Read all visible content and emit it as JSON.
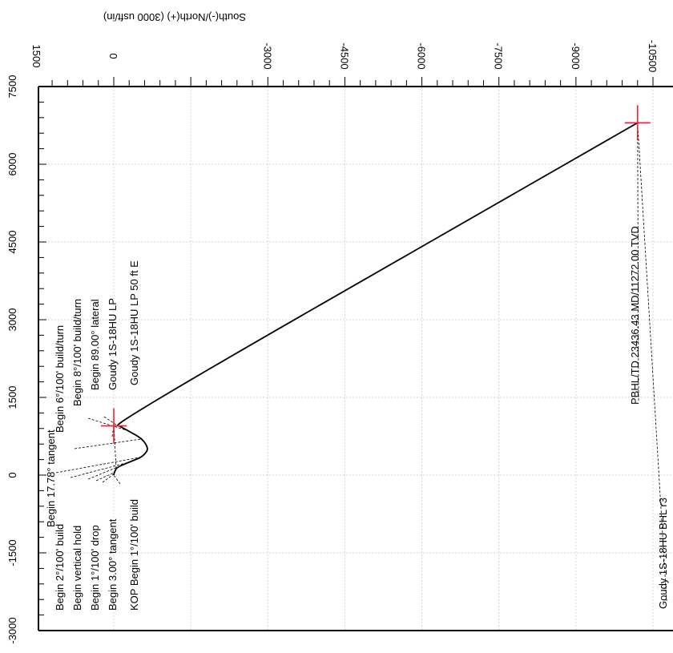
{
  "chart_data": {
    "type": "line",
    "title": "",
    "axis_label": "South(-)/North(+) (3000 usft/in)",
    "axis_label_2": "",
    "ns_ticks": [
      "0",
      "1500",
      "-3000",
      "-4500",
      "-6000",
      "-7500",
      "-9000",
      "-10500"
    ],
    "ew_ticks": [
      "7500",
      "6000",
      "4500",
      "3000",
      "1500",
      "0",
      "-1500",
      "-3000"
    ],
    "ns_range": [
      -10500,
      1500
    ],
    "ew_range": [
      -3000,
      7500
    ],
    "grid": true,
    "series": [
      {
        "points": [
          {
            "ew": 0,
            "ns": 0
          },
          {
            "ew": 50,
            "ns": -10
          },
          {
            "ew": 150,
            "ns": -60
          },
          {
            "ew": 250,
            "ns": -300
          },
          {
            "ew": 350,
            "ns": -550
          },
          {
            "ew": 500,
            "ns": -680
          },
          {
            "ew": 700,
            "ns": -560
          },
          {
            "ew": 900,
            "ns": -200
          },
          {
            "ew": 1000,
            "ns": 0
          },
          {
            "ew": 6800,
            "ns": -10200
          }
        ]
      }
    ],
    "targets": [
      {
        "ew": 950,
        "ns": 0
      },
      {
        "ew": 6800,
        "ns": -10200
      }
    ],
    "annotations": [
      {
        "text": "Begin 17.78° tangent",
        "ew": 350,
        "ns": -550
      },
      {
        "text": "Begin 6°/100' build/turn",
        "ew": 700,
        "ns": -560
      },
      {
        "text": "Begin 8°/100' build/turn",
        "ew": 850,
        "ns": -300
      },
      {
        "text": "Begin 89.00° lateral",
        "ew": 950,
        "ns": -80
      },
      {
        "text": "Goudy 1S-18HU LP",
        "ew": 950,
        "ns": 0
      },
      {
        "text": "Goudy 1S-18HU LP 50 ft E",
        "ew": 1000,
        "ns": 0
      },
      {
        "text": "Begin 2°/100' build",
        "ew": 250,
        "ns": -300
      },
      {
        "text": "Begin vertical hold",
        "ew": 150,
        "ns": -60
      },
      {
        "text": "Begin 1°/100' drop",
        "ew": 50,
        "ns": -10
      },
      {
        "text": "Begin 3.00° tangent",
        "ew": 20,
        "ns": 0
      },
      {
        "text": "KOP Begin 1°/100' build",
        "ew": 0,
        "ns": 0
      },
      {
        "text": "PBHL/TD 23436.43 MD/11272.00 TVD",
        "ew": 6800,
        "ns": -10200
      },
      {
        "text": "Goudy 1S-18HU BHL r3",
        "ew": 6800,
        "ns": -10200
      }
    ]
  }
}
